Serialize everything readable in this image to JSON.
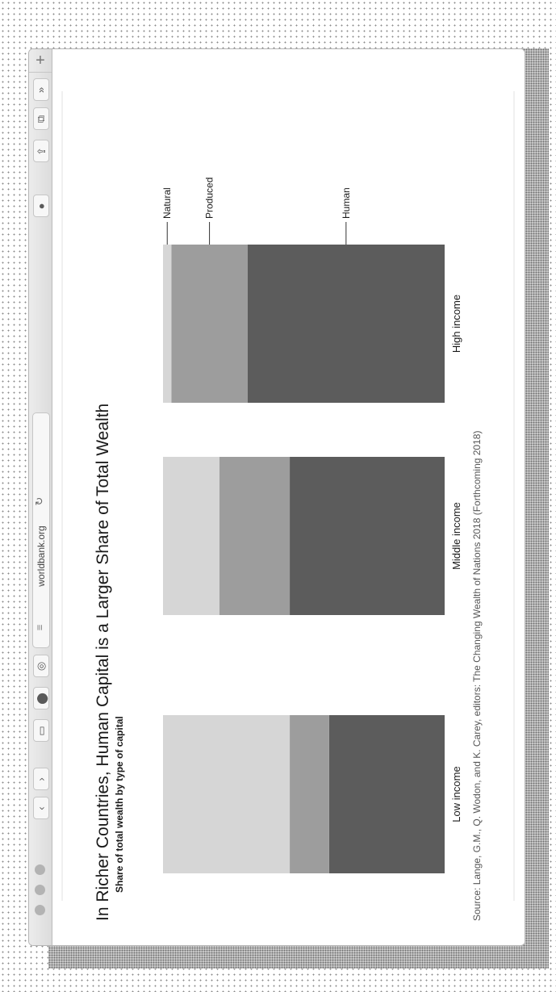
{
  "browser": {
    "url": "worldbank.org",
    "new_tab_label": "+"
  },
  "chart_text": {
    "title": "In Richer Countries, Human Capital is a Larger Share of Total Wealth",
    "subtitle": "Share of total wealth by type of capital",
    "source": "Source: Lange, G.M., Q. Wodon, and K. Carey, editors: The Changing Wealth of Nations 2018 (Forthcoming 2018)"
  },
  "chart_data": {
    "type": "bar",
    "stacked": true,
    "normalized_100": true,
    "title": "In Richer Countries, Human Capital is a Larger Share of Total Wealth",
    "subtitle": "Share of total wealth by type of capital",
    "categories": [
      "Low income",
      "Middle income",
      "High income"
    ],
    "series": [
      {
        "name": "Human",
        "values": [
          41,
          55,
          70
        ],
        "color": "#5c5c5c"
      },
      {
        "name": "Produced",
        "values": [
          14,
          25,
          27
        ],
        "color": "#9d9d9d"
      },
      {
        "name": "Natural",
        "values": [
          45,
          20,
          3
        ],
        "color": "#d6d6d6"
      }
    ],
    "ylim": [
      0,
      100
    ],
    "grid": false,
    "legend": "inline labels on last bar"
  }
}
